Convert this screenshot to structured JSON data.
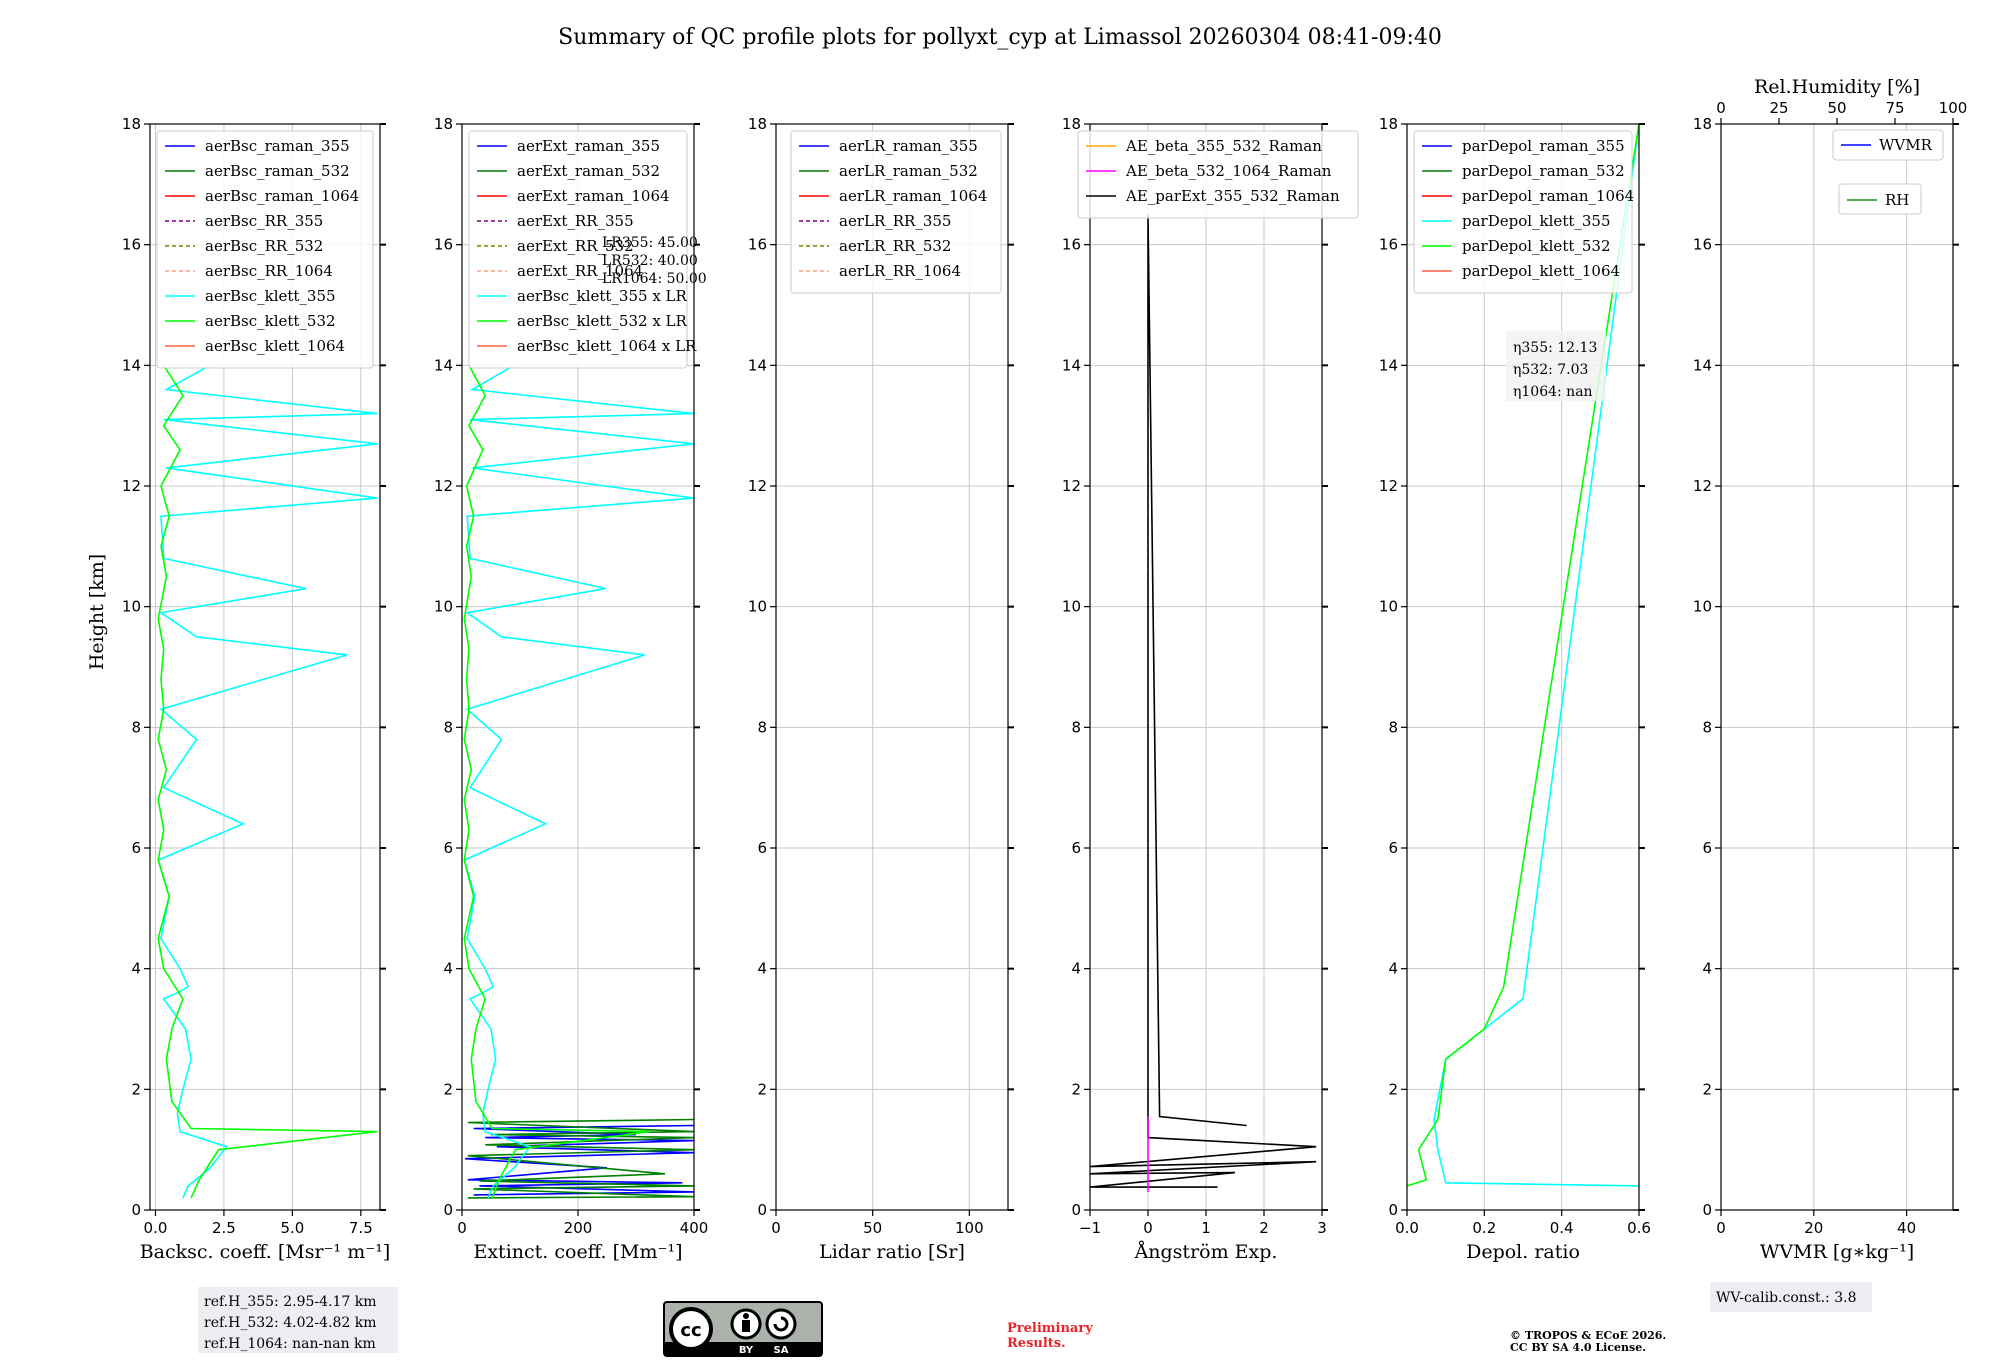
{
  "title": "Summary of QC profile plots for pollyxt_cyp at Limassol 20260304 08:41-09:40",
  "ylabel": "Height [km]",
  "ylim": [
    0,
    18
  ],
  "yticks": [
    0,
    2,
    4,
    6,
    8,
    10,
    12,
    14,
    16,
    18
  ],
  "colors": {
    "raman_355": "#0000ff",
    "raman_532": "#008000",
    "raman_1064": "#ff0000",
    "RR_355": "#800080",
    "RR_532": "#808000",
    "RR_1064": "#ffa07a",
    "klett_355": "#00ffff",
    "klett_532": "#00ff00",
    "klett_1064": "#ff6347",
    "AE1": "#ffa500",
    "AE2": "#ff00ff",
    "AE3": "#000000",
    "WVMR": "#0000ff",
    "RH": "#228b22"
  },
  "chart_data": [
    {
      "type": "line",
      "id": "backscatter",
      "xlabel": "Backsc. coeff. [Msr$^{-1}$ m$^{-1}$]",
      "xlabel_display": "Backsc. coeff. [Msr⁻¹ m⁻¹]",
      "xlim": [
        -0.2,
        8.2
      ],
      "xticks": [
        0.0,
        2.5,
        5.0,
        7.5
      ],
      "xticklabels": [
        "0.0",
        "2.5",
        "5.0",
        "7.5"
      ],
      "legend": [
        "aerBsc_raman_355",
        "aerBsc_raman_532",
        "aerBsc_raman_1064",
        "aerBsc_RR_355",
        "aerBsc_RR_532",
        "aerBsc_RR_1064",
        "aerBsc_klett_355",
        "aerBsc_klett_532",
        "aerBsc_klett_1064"
      ],
      "series": [
        {
          "name": "aerBsc_klett_355",
          "x": [
            1.0,
            1.2,
            2.0,
            2.6,
            0.9,
            0.8,
            1.0,
            1.3,
            1.1,
            0.3,
            0.8,
            1.2,
            0.9,
            0.2,
            0.5,
            0.1,
            3.2,
            0.3,
            1.5,
            0.2,
            7.0,
            1.5,
            0.2,
            5.5,
            0.3,
            0.2,
            8.1,
            0.4,
            8.1,
            0.3,
            8.1,
            0.4,
            2.0
          ],
          "y": [
            0.2,
            0.4,
            0.7,
            1.05,
            1.3,
            1.6,
            2.0,
            2.5,
            3.0,
            3.5,
            3.6,
            3.7,
            4.0,
            4.5,
            5.2,
            5.8,
            6.4,
            7.0,
            7.8,
            8.3,
            9.2,
            9.5,
            9.9,
            10.3,
            10.8,
            11.5,
            11.8,
            12.3,
            12.7,
            13.1,
            13.2,
            13.6,
            14.0
          ]
        },
        {
          "name": "aerBsc_klett_532",
          "x": [
            1.3,
            1.6,
            2.3,
            8.1,
            1.3,
            0.6,
            0.4,
            0.6,
            1.0,
            0.3,
            0.1,
            0.5,
            0.1,
            0.3,
            0.1,
            0.4,
            0.1,
            0.3,
            0.2,
            0.3,
            0.1,
            0.4,
            0.2,
            0.5,
            0.2,
            0.9,
            0.3,
            1.0,
            0.3
          ],
          "y": [
            0.2,
            0.5,
            1.0,
            1.3,
            1.35,
            1.8,
            2.5,
            3.0,
            3.5,
            4.0,
            4.5,
            5.2,
            5.8,
            6.3,
            6.8,
            7.3,
            7.8,
            8.3,
            8.8,
            9.3,
            9.8,
            10.5,
            11.0,
            11.5,
            12.0,
            12.6,
            13.0,
            13.5,
            14.0
          ]
        }
      ],
      "note": "ref.H_355: 2.95-4.17 km\nref.H_532: 4.02-4.82 km\nref.H_1064: nan-nan km"
    },
    {
      "type": "line",
      "id": "extinction",
      "xlabel": "Extinct. coeff. [Mm$^{-1}$]",
      "xlabel_display": "Extinct. coeff. [Mm⁻¹]",
      "xlim": [
        0,
        400
      ],
      "xticks": [
        0,
        200,
        400
      ],
      "xticklabels": [
        "0",
        "200",
        "400"
      ],
      "legend": [
        "aerExt_raman_355",
        "aerExt_raman_532",
        "aerExt_raman_1064",
        "aerExt_RR_355",
        "aerExt_RR_532",
        "aerExt_RR_1064",
        "aerBsc_klett_355 x LR",
        "aerBsc_klett_532 x LR",
        "aerBsc_klett_1064 x LR"
      ],
      "lr_labels": [
        "LR355: 45.00",
        "LR532: 40.00",
        "LR1064: 50.00"
      ],
      "series": [
        {
          "name": "aerExt_raman_355",
          "x": [
            20,
            400,
            30,
            380,
            10,
            250,
            5,
            400,
            60,
            400,
            40,
            300,
            20,
            400
          ],
          "y": [
            0.25,
            0.3,
            0.4,
            0.45,
            0.5,
            0.7,
            0.85,
            0.95,
            1.05,
            1.15,
            1.2,
            1.25,
            1.35,
            1.4
          ]
        },
        {
          "name": "aerExt_raman_532",
          "x": [
            10,
            400,
            20,
            400,
            30,
            350,
            10,
            400,
            40,
            400,
            50,
            400,
            10,
            400
          ],
          "y": [
            0.2,
            0.22,
            0.35,
            0.4,
            0.48,
            0.6,
            0.9,
            1.0,
            1.08,
            1.2,
            1.25,
            1.3,
            1.45,
            1.5
          ]
        },
        {
          "name": "aerBsc_klett_355 x LR",
          "x": [
            45,
            54,
            90,
            117,
            40,
            36,
            45,
            58,
            50,
            14,
            36,
            54,
            40,
            9,
            22,
            4,
            144,
            14,
            68,
            9,
            315,
            68,
            9,
            248,
            14,
            9,
            400,
            18,
            400,
            14,
            400,
            18,
            90
          ],
          "y": [
            0.2,
            0.4,
            0.7,
            1.05,
            1.3,
            1.6,
            2.0,
            2.5,
            3.0,
            3.5,
            3.6,
            3.7,
            4.0,
            4.5,
            5.2,
            5.8,
            6.4,
            7.0,
            7.8,
            8.3,
            9.2,
            9.5,
            9.9,
            10.3,
            10.8,
            11.5,
            11.8,
            12.3,
            12.7,
            13.1,
            13.2,
            13.6,
            14.0
          ]
        },
        {
          "name": "aerBsc_klett_532 x LR",
          "x": [
            52,
            64,
            92,
            324,
            52,
            24,
            16,
            24,
            40,
            12,
            4,
            20,
            4,
            12,
            4,
            16,
            4,
            12,
            8,
            12,
            4,
            16,
            8,
            20,
            8,
            36,
            12,
            40,
            12
          ],
          "y": [
            0.2,
            0.5,
            1.0,
            1.3,
            1.35,
            1.8,
            2.5,
            3.0,
            3.5,
            4.0,
            4.5,
            5.2,
            5.8,
            6.3,
            6.8,
            7.3,
            7.8,
            8.3,
            8.8,
            9.3,
            9.8,
            10.5,
            11.0,
            11.5,
            12.0,
            12.6,
            13.0,
            13.5,
            14.0
          ]
        }
      ]
    },
    {
      "type": "line",
      "id": "lidar_ratio",
      "xlabel": "Lidar ratio [Sr]",
      "xlim": [
        0,
        120
      ],
      "xticks": [
        0,
        50,
        100
      ],
      "xticklabels": [
        "0",
        "50",
        "100"
      ],
      "legend": [
        "aerLR_raman_355",
        "aerLR_raman_532",
        "aerLR_raman_1064",
        "aerLR_RR_355",
        "aerLR_RR_532",
        "aerLR_RR_1064"
      ],
      "series": []
    },
    {
      "type": "line",
      "id": "angstrom",
      "xlabel": "Ångström Exp.",
      "xlim": [
        -1,
        3
      ],
      "xticks": [
        -1,
        0,
        1,
        2,
        3
      ],
      "xticklabels": [
        "−1",
        "0",
        "1",
        "2",
        "3"
      ],
      "legend": [
        "AE_beta_355_532_Raman",
        "AE_beta_532_1064_Raman",
        "AE_parExt_355_532_Raman"
      ],
      "series": [
        {
          "name": "AE_parExt_355_532_Raman",
          "x": [
            1.2,
            -1.0,
            1.5,
            -1.0,
            2.9,
            -1.0,
            2.9,
            0.0,
            0.0,
            0.0,
            0.2,
            1.7
          ],
          "y": [
            0.38,
            0.38,
            0.62,
            0.6,
            0.8,
            0.72,
            1.05,
            1.2,
            1.35,
            16.5,
            1.55,
            1.4
          ]
        },
        {
          "name": "AE_beta_532_1064_Raman",
          "x": [
            0.0,
            0.0
          ],
          "y": [
            0.3,
            1.55
          ]
        }
      ]
    },
    {
      "type": "line",
      "id": "depol",
      "xlabel": "Depol. ratio",
      "xlim": [
        0.0,
        0.6
      ],
      "xticks": [
        0.0,
        0.2,
        0.4,
        0.6
      ],
      "xticklabels": [
        "0.0",
        "0.2",
        "0.4",
        "0.6"
      ],
      "legend": [
        "parDepol_raman_355",
        "parDepol_raman_532",
        "parDepol_raman_1064",
        "parDepol_klett_355",
        "parDepol_klett_532",
        "parDepol_klett_1064"
      ],
      "eta_labels": [
        "η355: 12.13",
        "η532: 7.03",
        "η1064: nan"
      ],
      "series": [
        {
          "name": "parDepol_klett_355",
          "x": [
            0.6,
            0.1,
            0.08,
            0.07,
            0.1,
            0.3,
            0.6
          ],
          "y": [
            0.4,
            0.45,
            1.0,
            1.5,
            2.5,
            3.5,
            18.0
          ]
        },
        {
          "name": "parDepol_klett_532",
          "x": [
            0.0,
            0.05,
            0.03,
            0.08,
            0.09,
            0.1,
            0.2,
            0.25,
            0.6
          ],
          "y": [
            0.4,
            0.5,
            1.0,
            1.5,
            2.0,
            2.5,
            3.0,
            3.7,
            18.0
          ]
        }
      ]
    },
    {
      "type": "line",
      "id": "wvmr",
      "xlabel": "WVMR [$g*kg^{-1}$]",
      "xlabel_display": "WVMR [g∗kg⁻¹]",
      "xlim": [
        0,
        50
      ],
      "xticks": [
        0,
        20,
        40
      ],
      "xticklabels": [
        "0",
        "20",
        "40"
      ],
      "top_axis_label": "Rel.Humidity [%]",
      "top_xlim": [
        0,
        100
      ],
      "top_xticks": [
        0,
        25,
        50,
        75,
        100
      ],
      "top_xticklabels": [
        "0",
        "25",
        "50",
        "75",
        "100"
      ],
      "legend": [
        "WVMR",
        "RH"
      ],
      "note": "WV-calib.const.: 3.8",
      "series": []
    }
  ],
  "footer": {
    "license_badge": [
      "cc",
      "BY",
      "SA"
    ],
    "preliminary": [
      "Preliminary",
      "Results."
    ],
    "copyright": [
      "© TROPOS & ECoE 2026.",
      "CC BY SA 4.0 License."
    ]
  }
}
